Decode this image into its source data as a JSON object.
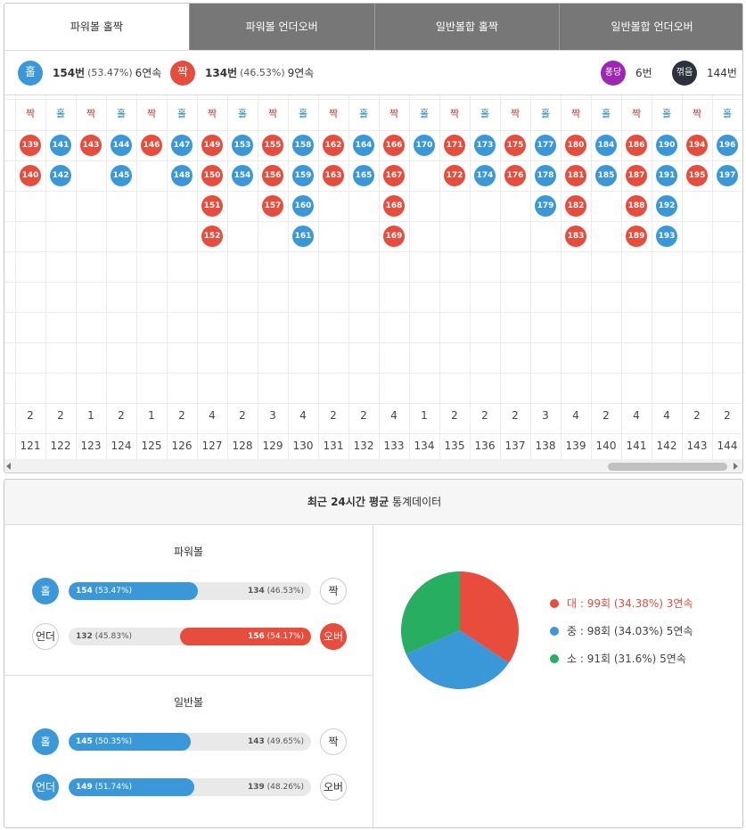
{
  "tabs": [
    {
      "label": "파워볼 홀짝",
      "active": true
    },
    {
      "label": "파워볼 언더오버",
      "active": false
    },
    {
      "label": "일반볼합 홀짝",
      "active": false
    },
    {
      "label": "일반볼합 언더오버",
      "active": false
    }
  ],
  "summary": {
    "left": [
      {
        "badge": "홀",
        "color": "#3a98d8",
        "count": "154번",
        "share": "(53.47%)",
        "streak": "6연속"
      },
      {
        "badge": "짝",
        "color": "#e74c3c",
        "count": "134번",
        "share": "(46.53%)",
        "streak": "9연속"
      }
    ],
    "right": [
      {
        "badge": "퐁당",
        "color": "#9c27b0",
        "count": "6번"
      },
      {
        "badge": "꺾음",
        "color": "#2b323c",
        "count": "144번"
      }
    ]
  },
  "pattern": {
    "ball_colors": {
      "홀": "#3a98d8",
      "짝": "#e74c3c"
    },
    "label_colors": {
      "홀": "#1f7fa8",
      "짝": "#c0392b"
    },
    "columns": [
      {
        "side": "짝",
        "balls": [
          139,
          140
        ],
        "count": 2,
        "round": 121
      },
      {
        "side": "홀",
        "balls": [
          141,
          142
        ],
        "count": 2,
        "round": 122
      },
      {
        "side": "짝",
        "balls": [
          143
        ],
        "count": 1,
        "round": 123
      },
      {
        "side": "홀",
        "balls": [
          144,
          145
        ],
        "count": 2,
        "round": 124
      },
      {
        "side": "짝",
        "balls": [
          146
        ],
        "count": 1,
        "round": 125
      },
      {
        "side": "홀",
        "balls": [
          147,
          148
        ],
        "count": 2,
        "round": 126
      },
      {
        "side": "짝",
        "balls": [
          149,
          150,
          151,
          152
        ],
        "count": 4,
        "round": 127
      },
      {
        "side": "홀",
        "balls": [
          153,
          154
        ],
        "count": 2,
        "round": 128
      },
      {
        "side": "짝",
        "balls": [
          155,
          156,
          157
        ],
        "count": 3,
        "round": 129
      },
      {
        "side": "홀",
        "balls": [
          158,
          159,
          160,
          161
        ],
        "count": 4,
        "round": 130
      },
      {
        "side": "짝",
        "balls": [
          162,
          163
        ],
        "count": 2,
        "round": 131
      },
      {
        "side": "홀",
        "balls": [
          164,
          165
        ],
        "count": 2,
        "round": 132
      },
      {
        "side": "짝",
        "balls": [
          166,
          167,
          168,
          169
        ],
        "count": 4,
        "round": 133
      },
      {
        "side": "홀",
        "balls": [
          170
        ],
        "count": 1,
        "round": 134
      },
      {
        "side": "짝",
        "balls": [
          171,
          172
        ],
        "count": 2,
        "round": 135
      },
      {
        "side": "홀",
        "balls": [
          173,
          174
        ],
        "count": 2,
        "round": 136
      },
      {
        "side": "짝",
        "balls": [
          175,
          176
        ],
        "count": 2,
        "round": 137
      },
      {
        "side": "홀",
        "balls": [
          177,
          178,
          179
        ],
        "count": 3,
        "round": 138
      },
      {
        "side": "짝",
        "balls": [
          180,
          181,
          182,
          183
        ],
        "count": 4,
        "round": 139
      },
      {
        "side": "홀",
        "balls": [
          184,
          185
        ],
        "count": 2,
        "round": 140
      },
      {
        "side": "짝",
        "balls": [
          186,
          187,
          188,
          189
        ],
        "count": 4,
        "round": 141
      },
      {
        "side": "홀",
        "balls": [
          190,
          191,
          192,
          193
        ],
        "count": 4,
        "round": 142
      },
      {
        "side": "짝",
        "balls": [
          194,
          195
        ],
        "count": 2,
        "round": 143
      },
      {
        "side": "홀",
        "balls": [
          196,
          197
        ],
        "count": 2,
        "round": 144
      }
    ]
  },
  "stats": {
    "title": "최근 24시간 평균",
    "title_suffix": "통계데이터",
    "left_color": "#3a98d8",
    "right_color": "#e74c3c",
    "groups": [
      {
        "title": "파워볼",
        "rows": [
          {
            "left": {
              "label": "홀",
              "count": 154,
              "share": 53.47,
              "share_label": "(53.47%)"
            },
            "right": {
              "label": "짝",
              "count": 134,
              "share": 46.53,
              "share_label": "(46.53%)"
            }
          },
          {
            "left": {
              "label": "언더",
              "count": 132,
              "share": 45.83,
              "share_label": "(45.83%)"
            },
            "right": {
              "label": "오버",
              "count": 156,
              "share": 54.17,
              "share_label": "(54.17%)"
            }
          }
        ]
      },
      {
        "title": "일반볼",
        "rows": [
          {
            "left": {
              "label": "홀",
              "count": 145,
              "share": 50.35,
              "share_label": "(50.35%)"
            },
            "right": {
              "label": "짝",
              "count": 143,
              "share": 49.65,
              "share_label": "(49.65%)"
            }
          },
          {
            "left": {
              "label": "언더",
              "count": 149,
              "share": 51.74,
              "share_label": "(51.74%)"
            },
            "right": {
              "label": "오버",
              "count": 139,
              "share": 48.26,
              "share_label": "(48.26%)"
            }
          }
        ]
      }
    ]
  },
  "pie": {
    "values": [
      99,
      98,
      91
    ],
    "colors": [
      "#e74c3c",
      "#3a98d8",
      "#27ae60"
    ],
    "legend": [
      "대 : 99회 (34.38%) 3연속",
      "중 : 98회 (34.03%) 5연속",
      "소 : 91회 (31.6%) 5연속"
    ],
    "highlight": 0
  }
}
